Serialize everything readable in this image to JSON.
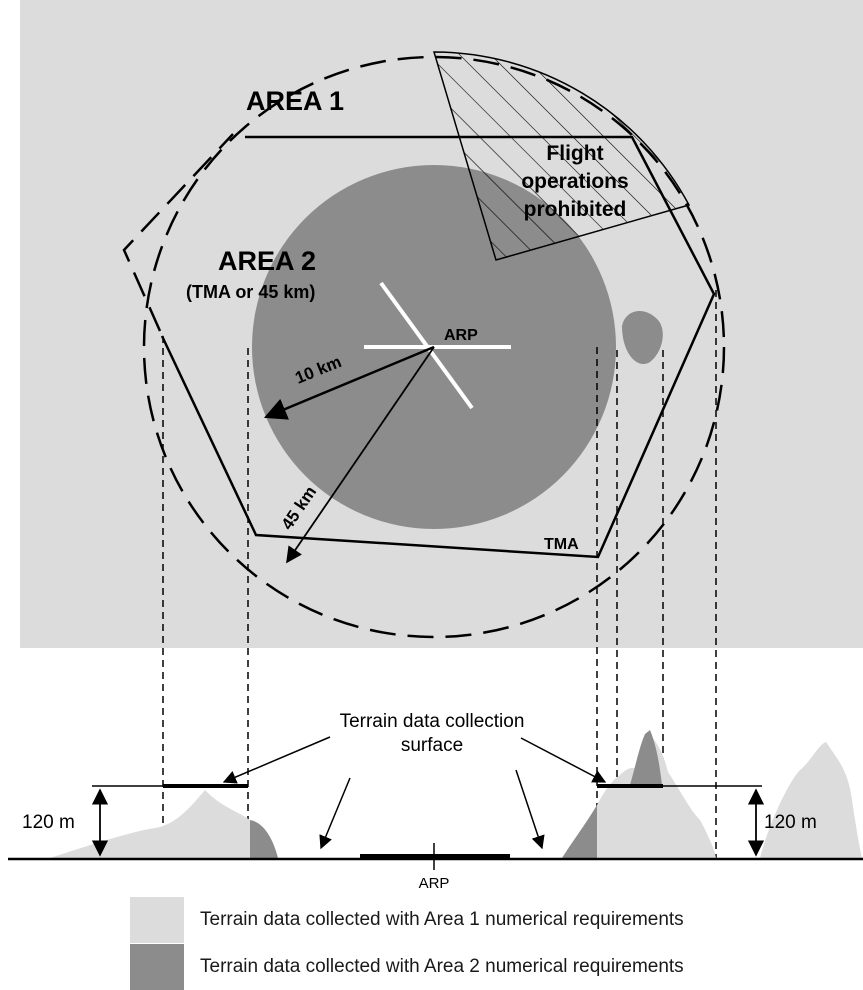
{
  "labels": {
    "area1": "AREA 1",
    "area2": "AREA 2",
    "area2_sub": "(TMA or 45 km)",
    "arp": "ARP",
    "r10": "10 km",
    "r45": "45 km",
    "tma": "TMA",
    "prohibited_line1": "Flight",
    "prohibited_line2": "operations",
    "prohibited_line3": "prohibited",
    "surface_line1": "Terrain data collection",
    "surface_line2": "surface",
    "height_left": "120 m",
    "height_right": "120 m",
    "arp_profile": "ARP"
  },
  "legend": [
    {
      "text": "Terrain data collected with Area 1 numerical requirements",
      "color": "#dcdcdc"
    },
    {
      "text": "Terrain data collected with Area 2 numerical requirements",
      "color": "#8c8c8c"
    }
  ],
  "colors": {
    "area1_fill": "#dcdcdc",
    "area2_fill": "#8c8c8c",
    "line": "#000000",
    "runway": "#ffffff"
  }
}
